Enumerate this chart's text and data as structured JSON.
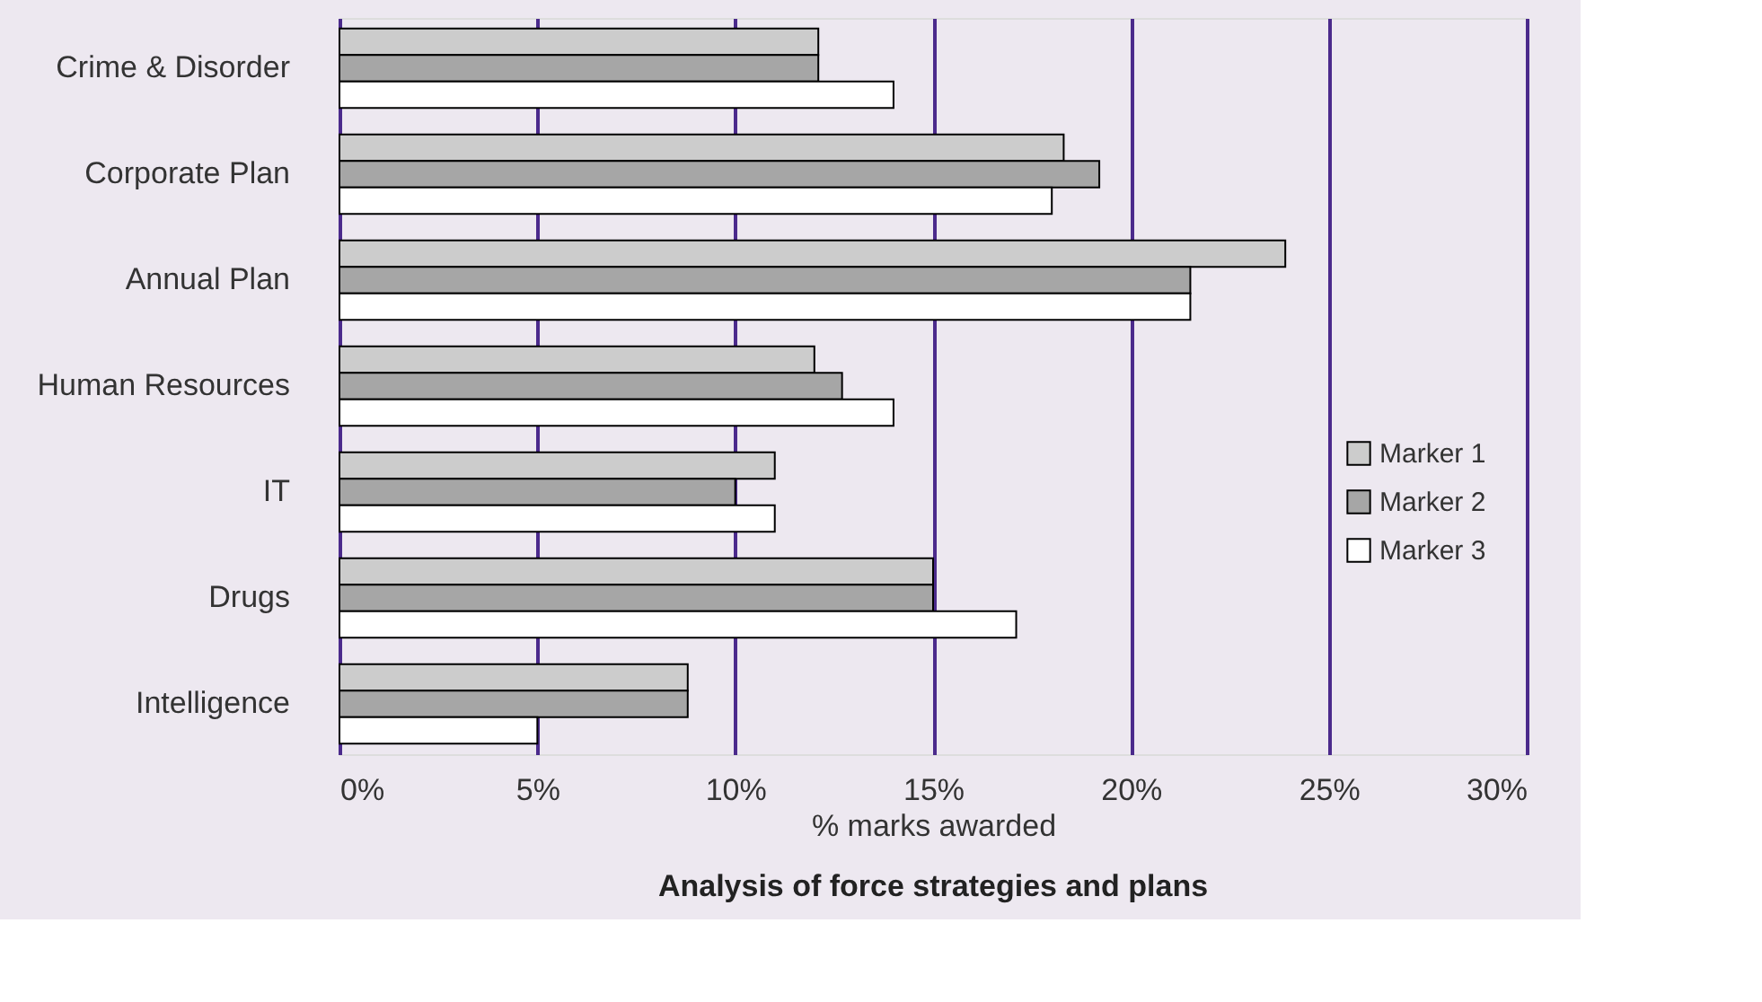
{
  "chart_data": {
    "type": "bar",
    "orientation": "horizontal",
    "title": "Analysis of force strategies and plans",
    "xlabel": "% marks awarded",
    "categories": [
      "Crime & Disorder",
      "Corporate Plan",
      "Annual Plan",
      "Human Resources",
      "IT",
      "Drugs",
      "Intelligence"
    ],
    "series": [
      {
        "name": "Marker 1",
        "color": "#cccccc",
        "values": [
          12.1,
          18.3,
          23.9,
          12.0,
          11.0,
          15.0,
          8.8
        ]
      },
      {
        "name": "Marker 2",
        "color": "#a6a6a6",
        "values": [
          12.1,
          19.2,
          21.5,
          12.7,
          10.0,
          15.0,
          8.8
        ]
      },
      {
        "name": "Marker 3",
        "color": "#ffffff",
        "values": [
          14.0,
          18.0,
          21.5,
          14.0,
          11.0,
          17.1,
          5.0
        ]
      }
    ],
    "xlim": [
      0,
      30
    ],
    "xticks": [
      {
        "value": 0,
        "label": "0%"
      },
      {
        "value": 5,
        "label": "5%"
      },
      {
        "value": 10,
        "label": "10%"
      },
      {
        "value": 15,
        "label": "15%"
      },
      {
        "value": 20,
        "label": "20%"
      },
      {
        "value": 25,
        "label": "25%"
      },
      {
        "value": 30,
        "label": "30%"
      }
    ],
    "grid": "x",
    "legend": "right"
  }
}
